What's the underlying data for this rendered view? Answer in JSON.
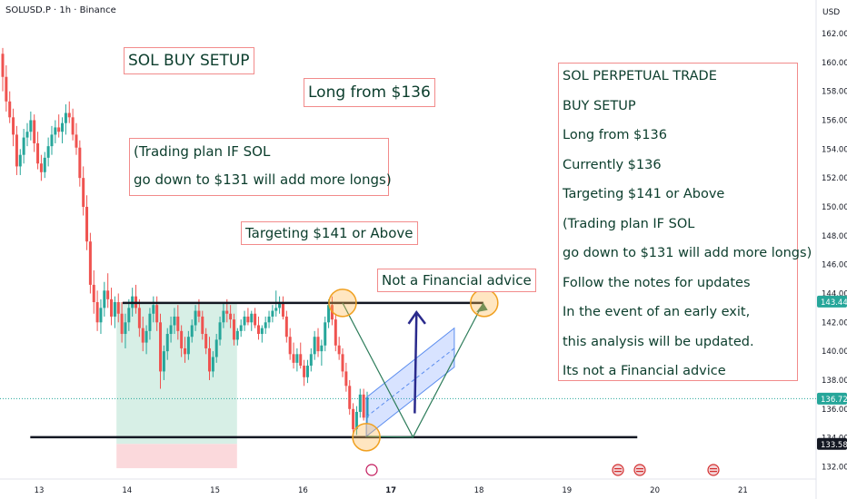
{
  "header": {
    "symbol_line": "SOLUSD.P · 1h · Binance"
  },
  "colors": {
    "up": "#26a69a",
    "down": "#ef5350",
    "note_border": "#f28b8b",
    "note_text": "#0b3d2c"
  },
  "annotations": {
    "title": "SOL BUY SETUP",
    "long": "Long from $136",
    "plan": [
      "(Trading plan IF SOL",
      "go down to $131 will add more longs)"
    ],
    "target": "Targeting $141 or Above",
    "advice": "Not a Financial advice",
    "notes": [
      "SOL PERPETUAL TRADE",
      "BUY SETUP",
      "Long from $136",
      "Currently $136",
      "Targeting $141 or Above",
      "(Trading plan IF SOL",
      "go down to $131 will add more longs)",
      "Follow the notes for updates",
      "In the event of an early exit,",
      "this analysis will be updated.",
      "Its not a Financial advice"
    ]
  },
  "chart_data": {
    "type": "candlestick",
    "y_unit": "USD",
    "ylim": [
      131.5,
      163.0
    ],
    "y_ticks": [
      "162.00",
      "160.00",
      "158.00",
      "156.00",
      "154.00",
      "152.00",
      "150.00",
      "148.00",
      "146.00",
      "144.00",
      "142.00",
      "140.00",
      "138.00",
      "136.00",
      "134.00",
      "132.00"
    ],
    "x_ticks": [
      "13",
      "14",
      "15",
      "16",
      "17",
      "18",
      "19",
      "20",
      "21"
    ],
    "x_domain": [
      12.6,
      21.4
    ],
    "price_labels": [
      {
        "value": 143.44,
        "label": "143.44",
        "color": "#26a69a"
      },
      {
        "value": 136.72,
        "label": "136.72",
        "color": "#26a69a"
      },
      {
        "value": 133.58,
        "label": "133.58",
        "color": "#131722"
      }
    ],
    "levels": [
      {
        "name": "resistance",
        "value": 143.35,
        "from": 13.95,
        "to": 18.05
      },
      {
        "name": "support",
        "value": 134.05,
        "from": 12.9,
        "to": 19.8
      }
    ],
    "position": {
      "from": 13.88,
      "to": 15.25,
      "entry": 133.58,
      "target": 143.4,
      "stop": 131.9
    },
    "candles": [
      [
        160.6,
        161.0,
        158.0,
        159.0
      ],
      [
        159.0,
        159.8,
        156.6,
        157.3
      ],
      [
        157.3,
        158.0,
        155.8,
        156.2
      ],
      [
        156.2,
        156.8,
        154.2,
        155.0
      ],
      [
        155.0,
        155.6,
        152.2,
        152.8
      ],
      [
        152.8,
        154.0,
        152.2,
        153.6
      ],
      [
        153.6,
        155.4,
        153.0,
        154.8
      ],
      [
        154.8,
        155.8,
        154.2,
        155.2
      ],
      [
        155.2,
        156.6,
        154.6,
        156.0
      ],
      [
        156.0,
        156.4,
        153.8,
        154.4
      ],
      [
        154.4,
        155.2,
        152.6,
        153.0
      ],
      [
        153.0,
        153.6,
        151.8,
        152.4
      ],
      [
        152.4,
        153.8,
        152.0,
        153.4
      ],
      [
        153.4,
        154.8,
        152.8,
        154.2
      ],
      [
        154.2,
        155.6,
        153.6,
        155.0
      ],
      [
        155.0,
        156.0,
        154.4,
        155.5
      ],
      [
        155.5,
        156.4,
        154.8,
        155.2
      ],
      [
        155.2,
        156.2,
        154.4,
        155.8
      ],
      [
        155.8,
        157.1,
        155.0,
        156.5
      ],
      [
        156.5,
        157.3,
        155.8,
        156.2
      ],
      [
        156.2,
        156.8,
        154.6,
        155.0
      ],
      [
        155.0,
        155.8,
        153.6,
        154.1
      ],
      [
        154.1,
        154.6,
        151.4,
        152.0
      ],
      [
        152.0,
        152.8,
        149.4,
        150.0
      ],
      [
        150.0,
        150.8,
        147.0,
        147.6
      ],
      [
        147.6,
        148.2,
        144.0,
        144.6
      ],
      [
        144.6,
        145.6,
        142.6,
        143.4
      ],
      [
        143.4,
        144.2,
        141.4,
        142.0
      ],
      [
        142.0,
        143.6,
        141.2,
        143.0
      ],
      [
        143.0,
        144.8,
        142.4,
        144.2
      ],
      [
        144.2,
        145.4,
        143.0,
        143.6
      ],
      [
        143.6,
        144.4,
        141.8,
        142.4
      ],
      [
        142.4,
        143.8,
        141.6,
        143.4
      ],
      [
        143.4,
        144.0,
        142.0,
        142.6
      ],
      [
        142.6,
        143.4,
        140.6,
        141.2
      ],
      [
        141.2,
        142.6,
        140.2,
        142.0
      ],
      [
        142.0,
        143.6,
        141.4,
        143.0
      ],
      [
        143.0,
        144.4,
        142.4,
        143.8
      ],
      [
        143.8,
        144.6,
        142.6,
        143.0
      ],
      [
        143.0,
        143.6,
        141.0,
        141.6
      ],
      [
        141.6,
        142.4,
        140.0,
        140.6
      ],
      [
        140.6,
        141.8,
        139.8,
        141.4
      ],
      [
        141.4,
        143.0,
        140.8,
        142.6
      ],
      [
        142.6,
        143.8,
        142.0,
        143.2
      ],
      [
        143.2,
        143.8,
        141.4,
        142.0
      ],
      [
        142.0,
        142.6,
        137.4,
        138.6
      ],
      [
        138.6,
        140.4,
        138.0,
        140.0
      ],
      [
        140.0,
        141.6,
        139.4,
        141.2
      ],
      [
        141.2,
        142.4,
        140.6,
        141.8
      ],
      [
        141.8,
        143.0,
        141.2,
        142.4
      ],
      [
        142.4,
        143.2,
        140.8,
        141.4
      ],
      [
        141.4,
        141.8,
        139.6,
        140.2
      ],
      [
        140.2,
        141.0,
        139.2,
        139.8
      ],
      [
        139.8,
        141.4,
        139.4,
        141.0
      ],
      [
        141.0,
        142.2,
        140.6,
        141.8
      ],
      [
        141.8,
        143.2,
        141.4,
        142.8
      ],
      [
        142.8,
        143.6,
        142.0,
        142.4
      ],
      [
        142.4,
        142.8,
        140.8,
        141.2
      ],
      [
        141.2,
        141.6,
        139.8,
        140.2
      ],
      [
        140.2,
        141.0,
        138.0,
        138.6
      ],
      [
        138.6,
        140.0,
        138.2,
        139.6
      ],
      [
        139.6,
        141.2,
        139.2,
        140.8
      ],
      [
        140.8,
        142.4,
        140.4,
        142.0
      ],
      [
        142.0,
        143.4,
        141.6,
        142.8
      ],
      [
        142.8,
        143.6,
        142.0,
        142.6
      ],
      [
        142.6,
        143.2,
        141.6,
        142.2
      ],
      [
        142.2,
        142.6,
        140.4,
        140.8
      ],
      [
        140.8,
        141.6,
        140.4,
        141.4
      ],
      [
        141.4,
        142.2,
        141.0,
        141.8
      ],
      [
        141.8,
        142.8,
        141.4,
        142.4
      ],
      [
        142.4,
        143.0,
        141.8,
        142.0
      ],
      [
        142.0,
        142.8,
        141.4,
        142.6
      ],
      [
        142.6,
        143.0,
        141.6,
        141.8
      ],
      [
        141.8,
        142.4,
        140.8,
        141.2
      ],
      [
        141.2,
        141.8,
        140.6,
        141.6
      ],
      [
        141.6,
        142.4,
        141.2,
        142.0
      ],
      [
        142.0,
        142.8,
        141.6,
        142.4
      ],
      [
        142.4,
        143.2,
        142.0,
        142.8
      ],
      [
        142.8,
        144.2,
        142.4,
        143.0
      ],
      [
        143.0,
        143.8,
        142.6,
        143.4
      ],
      [
        143.4,
        143.8,
        142.2,
        142.4
      ],
      [
        142.4,
        142.8,
        140.6,
        141.0
      ],
      [
        141.0,
        141.6,
        139.4,
        139.8
      ],
      [
        139.8,
        140.6,
        138.8,
        139.2
      ],
      [
        139.2,
        140.2,
        138.6,
        139.8
      ],
      [
        139.8,
        140.6,
        138.8,
        139.0
      ],
      [
        139.0,
        139.4,
        137.6,
        138.2
      ],
      [
        138.2,
        139.4,
        137.8,
        139.0
      ],
      [
        139.0,
        140.2,
        138.6,
        139.8
      ],
      [
        139.8,
        141.4,
        139.4,
        141.0
      ],
      [
        141.0,
        141.6,
        139.6,
        140.0
      ],
      [
        140.0,
        140.8,
        139.0,
        140.4
      ],
      [
        140.4,
        142.4,
        140.0,
        142.0
      ],
      [
        142.0,
        143.6,
        141.6,
        143.2
      ],
      [
        143.2,
        143.8,
        141.8,
        142.2
      ],
      [
        142.2,
        142.6,
        140.0,
        140.4
      ],
      [
        140.4,
        141.0,
        139.4,
        139.8
      ],
      [
        139.8,
        140.2,
        138.2,
        138.6
      ],
      [
        138.6,
        139.2,
        137.2,
        137.6
      ],
      [
        137.6,
        138.0,
        135.6,
        136.0
      ],
      [
        136.0,
        136.4,
        134.0,
        134.6
      ],
      [
        134.6,
        136.2,
        134.2,
        135.8
      ],
      [
        135.8,
        137.4,
        135.4,
        137.0
      ],
      [
        137.0,
        137.4,
        135.2,
        135.4
      ],
      [
        135.4,
        137.2,
        135.0,
        136.8
      ]
    ]
  }
}
